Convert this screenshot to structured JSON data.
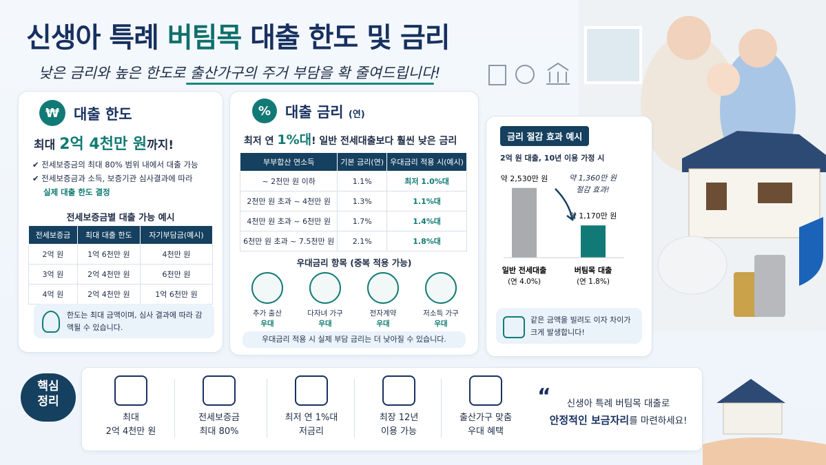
{
  "header": {
    "title_parts": [
      "신생아 특례 ",
      "버팀목",
      " 대출 한도 및 금리"
    ],
    "subtitle": "낮은 금리와 높은 한도로 출산가구의 주거 부담을 확 줄여드립니다!"
  },
  "limit_panel": {
    "heading": "대출 한도",
    "max_parts": [
      "최대 ",
      "2억 4천만 원",
      "까지!"
    ],
    "bullets": [
      "전세보증금의 최대 80% 범위 내에서 대출 가능",
      "전세보증금과 소득, 보증기관 심사결과에 따라"
    ],
    "bullet_emphasis": "실제 대출 한도 결정",
    "table_title": "전세보증금별 대출 가능 예시",
    "table": {
      "header": [
        "전세보증금",
        "최대 대출 한도",
        "자기부담금(예시)"
      ],
      "rows": [
        [
          "2억 원",
          "1억 6천만 원",
          "4천만 원"
        ],
        [
          "3억 원",
          "2억 4천만 원",
          "6천만 원"
        ],
        [
          "4억 원",
          "2억 4천만 원",
          "1억 6천만 원"
        ]
      ]
    },
    "note": "한도는 최대 금액이며, 심사 결과에 따라 감액될 수 있습니다."
  },
  "rate_panel": {
    "heading": "대출 금리",
    "heading_suffix": "(연)",
    "lead_parts": [
      "최저 연 ",
      "1%대",
      "! 일반 전세대출보다 훨씬 낮은 금리"
    ],
    "table": {
      "header": [
        "부부합산 연소득",
        "기본 금리(연)",
        "우대금리 적용 시(예시)"
      ],
      "rows": [
        [
          "~ 2천만 원 이하",
          "1.1%",
          "최저 1.0%대"
        ],
        [
          "2천만 원 초과 ~ 4천만 원",
          "1.3%",
          "1.1%대"
        ],
        [
          "4천만 원 초과 ~ 6천만 원",
          "1.7%",
          "1.4%대"
        ],
        [
          "6천만 원 초과 ~ 7.5천만 원",
          "2.1%",
          "1.8%대"
        ]
      ]
    },
    "pref_title": "우대금리 항목 (중복 적용 가능)",
    "pref_items": [
      {
        "label": "추가 출산",
        "sub": "우대"
      },
      {
        "label": "다자녀 가구",
        "sub": "우대"
      },
      {
        "label": "전자계약",
        "sub": "우대"
      },
      {
        "label": "저소득 가구",
        "sub": "우대"
      }
    ],
    "note": "우대금리 적용 시 실제 부담 금리는 더 낮아질 수 있습니다."
  },
  "savings": {
    "title": "금리 절감 효과 예시",
    "assumption": "2억 원 대출, 10년 이용 가정 시",
    "chart": {
      "type": "bar",
      "categories": [
        "일반 전세대출",
        "버팀목 대출"
      ],
      "category_notes": [
        "(연 4.0%)",
        "(연 1.8%)"
      ],
      "values": [
        2530,
        1170
      ],
      "value_labels": [
        "약 2,530만 원",
        "약 1,170만 원"
      ],
      "colors": [
        "#a9abae",
        "#127a76"
      ]
    },
    "annotation": [
      "약 1,360만 원",
      "절감 효과!"
    ],
    "note": [
      "같은 금액을 빌려도 이자 차이가",
      "크게 발생합니다!"
    ]
  },
  "summary": {
    "badge": [
      "핵심",
      "정리"
    ],
    "items": [
      [
        "최대",
        "2억 4천만 원"
      ],
      [
        "전세보증금",
        "최대 80%"
      ],
      [
        "최저 연 1%대",
        "저금리"
      ],
      [
        "최장 12년",
        "이용 가능"
      ],
      [
        "출산가구 맞춤",
        "우대 혜택"
      ]
    ],
    "quote_line1": "신생아 특례 버팀목 대출로",
    "quote_emphasis": "안정적인 보금자리",
    "quote_rest": "를 마련하세요!"
  }
}
